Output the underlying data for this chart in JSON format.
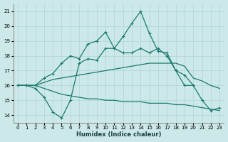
{
  "title": "",
  "xlabel": "Humidex (Indice chaleur)",
  "ylabel": "",
  "bg_color": "#cce8e8",
  "line_color": "#1a7a6e",
  "grid_color": "#afd4d4",
  "ylim": [
    13.5,
    21.5
  ],
  "xlim": [
    -0.5,
    23.5
  ],
  "yticks": [
    14,
    15,
    16,
    17,
    18,
    19,
    20,
    21
  ],
  "xticks": [
    0,
    1,
    2,
    3,
    4,
    5,
    6,
    7,
    8,
    9,
    10,
    11,
    12,
    13,
    14,
    15,
    16,
    17,
    18,
    19,
    20,
    21,
    22,
    23
  ],
  "line1_x": [
    0,
    1,
    2,
    3,
    4,
    5,
    6,
    7,
    8,
    9,
    10,
    11,
    12,
    13,
    14,
    15,
    16,
    17,
    18,
    19,
    20,
    21,
    22,
    23
  ],
  "line1_y": [
    16.0,
    16.0,
    16.0,
    16.5,
    16.8,
    17.5,
    18.0,
    17.8,
    18.8,
    19.0,
    19.6,
    18.5,
    19.3,
    20.2,
    21.0,
    19.5,
    18.3,
    18.2,
    17.0,
    16.7,
    16.0,
    15.0,
    14.3,
    14.5
  ],
  "line2_x": [
    0,
    1,
    2,
    3,
    4,
    5,
    6,
    7,
    8,
    9,
    10,
    11,
    12,
    13,
    14,
    15,
    16,
    17,
    18,
    19,
    20,
    21,
    22,
    23
  ],
  "line2_y": [
    16.0,
    16.0,
    16.0,
    16.2,
    16.4,
    16.5,
    16.6,
    16.7,
    16.8,
    16.9,
    17.0,
    17.1,
    17.2,
    17.3,
    17.4,
    17.5,
    17.5,
    17.5,
    17.5,
    17.3,
    16.5,
    16.3,
    16.0,
    15.8
  ],
  "line3_x": [
    0,
    1,
    2,
    3,
    4,
    5,
    6,
    7,
    8,
    9,
    10,
    11,
    12,
    13,
    14,
    15,
    16,
    17,
    18,
    19,
    20,
    21,
    22,
    23
  ],
  "line3_y": [
    16.0,
    16.0,
    16.0,
    15.8,
    15.6,
    15.4,
    15.3,
    15.2,
    15.1,
    15.1,
    15.0,
    15.0,
    14.9,
    14.9,
    14.9,
    14.8,
    14.8,
    14.8,
    14.7,
    14.7,
    14.6,
    14.5,
    14.4,
    14.3
  ],
  "line4_x": [
    0,
    1,
    2,
    3,
    4,
    5,
    6,
    7,
    8,
    9,
    10,
    11,
    12,
    13,
    14,
    15,
    16,
    17,
    18,
    19,
    20
  ],
  "line4_y": [
    16.0,
    16.0,
    15.8,
    15.2,
    14.2,
    13.8,
    15.0,
    17.5,
    17.8,
    17.7,
    18.5,
    18.5,
    18.2,
    18.2,
    18.5,
    18.2,
    18.5,
    18.0,
    17.0,
    16.0,
    16.0
  ]
}
